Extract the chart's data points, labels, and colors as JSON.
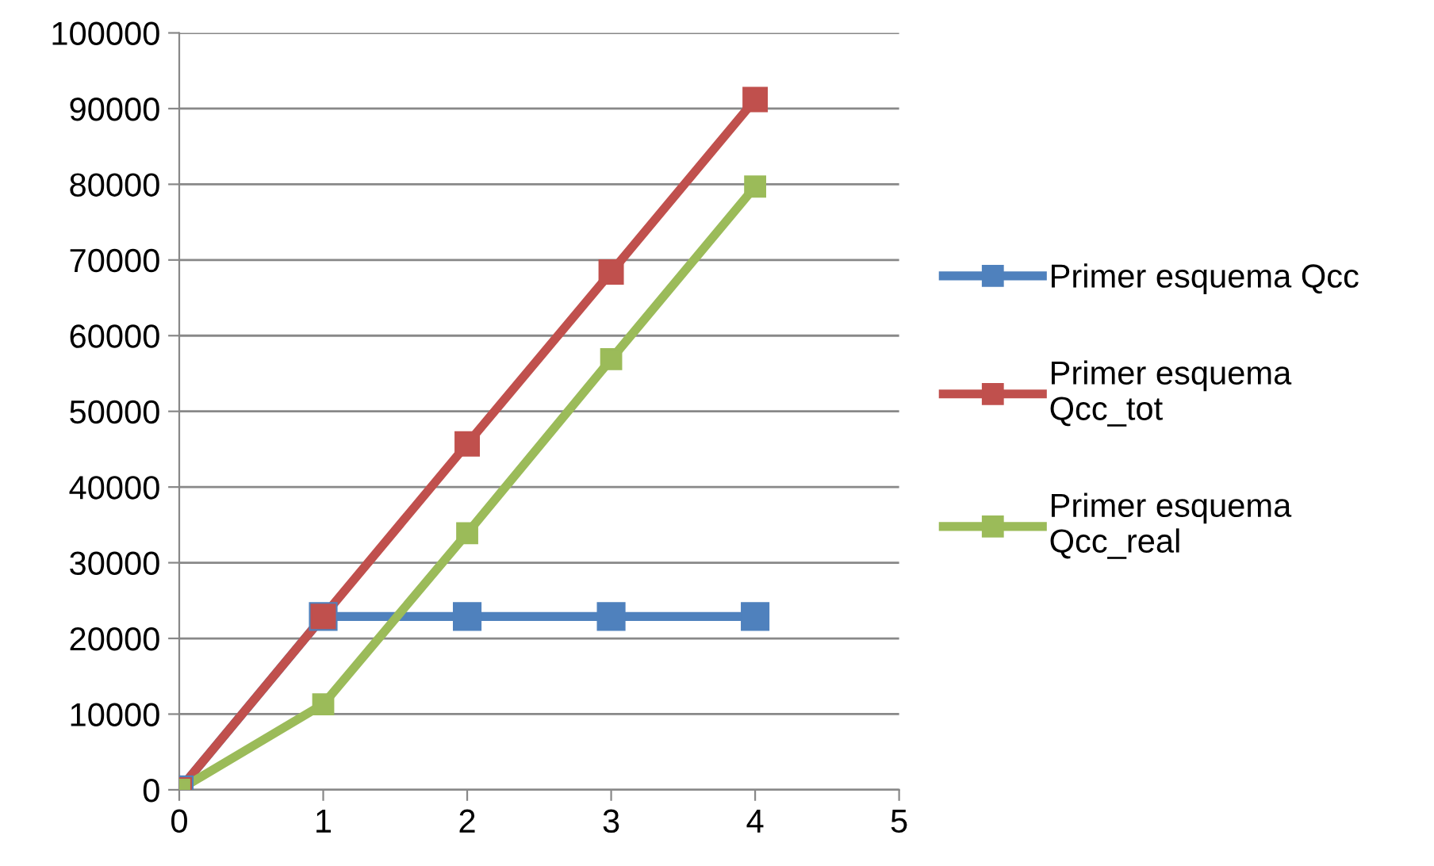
{
  "chart_data": {
    "type": "line",
    "x": [
      0,
      1,
      2,
      3,
      4
    ],
    "series": [
      {
        "name": "Primer esquema Qcc",
        "color": "#4f81bd",
        "values": [
          0,
          22900,
          22900,
          22900,
          22900
        ]
      },
      {
        "name": "Primer esquema Qcc_tot",
        "color": "#c0504d",
        "values": [
          0,
          22900,
          45700,
          68400,
          91200
        ]
      },
      {
        "name": "Primer esquema Qcc_real",
        "color": "#9bbb59",
        "values": [
          0,
          11300,
          33900,
          56900,
          79700
        ]
      }
    ],
    "xlim": [
      0,
      5
    ],
    "xticks": [
      0,
      1,
      2,
      3,
      4,
      5
    ],
    "ylim": [
      0,
      100000
    ],
    "yticks": [
      0,
      10000,
      20000,
      30000,
      40000,
      50000,
      60000,
      70000,
      80000,
      90000,
      100000
    ],
    "grid": "y",
    "legend": "right",
    "marker": "square",
    "line_style": "solid"
  }
}
